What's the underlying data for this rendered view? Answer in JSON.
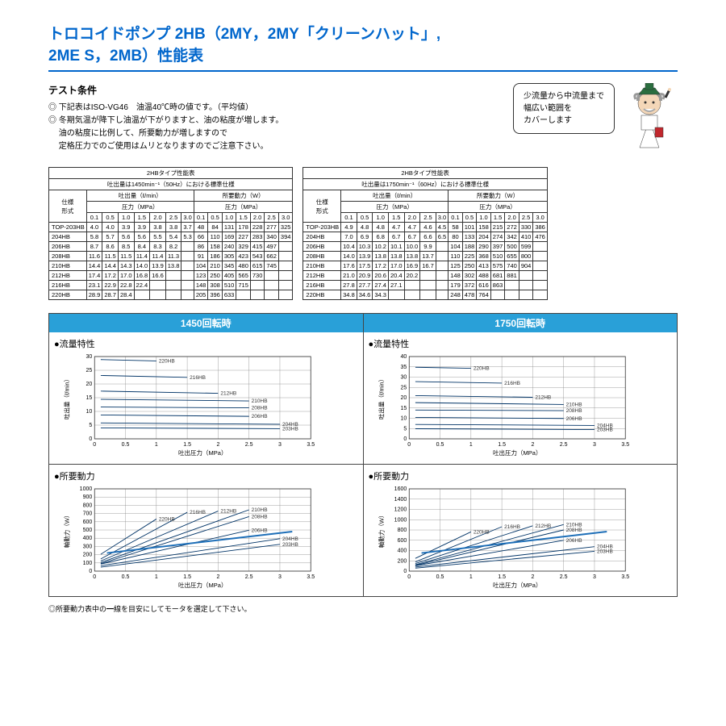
{
  "title_line1": "トロコイドポンプ 2HB（2MY，2MY「クリーンハット」,",
  "title_line2": "2ME S，2MB）性能表",
  "conditions_title": "テスト条件",
  "cond1": "◎ 下記表はISO-VG46　油温40℃時の値です。（平均値）",
  "cond2": "◎ 冬期気温が降下し油温が下がりますと、油の粘度が増します。",
  "cond3": "　 油の粘度に比例して、所要動力が増しますので",
  "cond4": "　 定格圧力でのご使用はムリとなりますのでご注意下さい。",
  "bubble1": "少流量から中流量まで",
  "bubble2": "幅広い範囲を",
  "bubble3": "カバーします",
  "tbl_title": "2HBタイプ性能表",
  "subtitle_1450": "吐出量は1450min⁻¹（50Hz）における標準仕様",
  "subtitle_1750": "吐出量は1750min⁻¹（60Hz）における標準仕様",
  "spec": "仕様",
  "model": "形式",
  "discharge": "吐出量（ℓ/min）",
  "power": "所要動力（W）",
  "pressure": "圧力（MPa）",
  "pressures_q": [
    "0.1",
    "0.5",
    "1.0",
    "1.5",
    "2.0",
    "2.5",
    "3.0"
  ],
  "pressures_w": [
    "0.1",
    "0.5",
    "1.0",
    "1.5",
    "2.0",
    "2.5",
    "3.0"
  ],
  "rows_1450": [
    {
      "m": "TOP-203HB",
      "q": [
        "4.0",
        "4.0",
        "3.9",
        "3.9",
        "3.8",
        "3.8",
        "3.7"
      ],
      "w": [
        "48",
        "84",
        "131",
        "178",
        "228",
        "277",
        "325"
      ]
    },
    {
      "m": "204HB",
      "q": [
        "5.8",
        "5.7",
        "5.6",
        "5.6",
        "5.5",
        "5.4",
        "5.3"
      ],
      "w": [
        "66",
        "110",
        "169",
        "227",
        "283",
        "340",
        "394"
      ]
    },
    {
      "m": "206HB",
      "q": [
        "8.7",
        "8.6",
        "8.5",
        "8.4",
        "8.3",
        "8.2",
        ""
      ],
      "w": [
        "86",
        "158",
        "240",
        "329",
        "415",
        "497",
        ""
      ]
    },
    {
      "m": "208HB",
      "q": [
        "11.6",
        "11.5",
        "11.5",
        "11.4",
        "11.4",
        "11.3",
        ""
      ],
      "w": [
        "91",
        "186",
        "305",
        "423",
        "543",
        "662",
        ""
      ]
    },
    {
      "m": "210HB",
      "q": [
        "14.4",
        "14.4",
        "14.3",
        "14.0",
        "13.9",
        "13.8",
        ""
      ],
      "w": [
        "104",
        "210",
        "345",
        "480",
        "615",
        "745",
        ""
      ]
    },
    {
      "m": "212HB",
      "q": [
        "17.4",
        "17.2",
        "17.0",
        "16.8",
        "16.6",
        "",
        ""
      ],
      "w": [
        "123",
        "250",
        "405",
        "565",
        "730",
        "",
        ""
      ]
    },
    {
      "m": "216HB",
      "q": [
        "23.1",
        "22.9",
        "22.8",
        "22.4",
        "",
        "",
        ""
      ],
      "w": [
        "148",
        "308",
        "510",
        "715",
        "",
        "",
        ""
      ]
    },
    {
      "m": "220HB",
      "q": [
        "28.9",
        "28.7",
        "28.4",
        "",
        "",
        "",
        ""
      ],
      "w": [
        "205",
        "396",
        "633",
        "",
        "",
        "",
        ""
      ]
    }
  ],
  "rows_1750": [
    {
      "m": "TOP-203HB",
      "q": [
        "4.9",
        "4.8",
        "4.8",
        "4.7",
        "4.7",
        "4.6",
        "4.5"
      ],
      "w": [
        "58",
        "101",
        "158",
        "215",
        "272",
        "330",
        "386"
      ]
    },
    {
      "m": "204HB",
      "q": [
        "7.0",
        "6.9",
        "6.8",
        "6.7",
        "6.7",
        "6.6",
        "6.5"
      ],
      "w": [
        "80",
        "133",
        "204",
        "274",
        "342",
        "410",
        "476"
      ]
    },
    {
      "m": "206HB",
      "q": [
        "10.4",
        "10.3",
        "10.2",
        "10.1",
        "10.0",
        "9.9",
        ""
      ],
      "w": [
        "104",
        "188",
        "290",
        "397",
        "500",
        "599",
        ""
      ]
    },
    {
      "m": "208HB",
      "q": [
        "14.0",
        "13.9",
        "13.8",
        "13.8",
        "13.8",
        "13.7",
        ""
      ],
      "w": [
        "110",
        "225",
        "368",
        "510",
        "655",
        "800",
        ""
      ]
    },
    {
      "m": "210HB",
      "q": [
        "17.6",
        "17.5",
        "17.2",
        "17.0",
        "16.9",
        "16.7",
        ""
      ],
      "w": [
        "125",
        "250",
        "413",
        "575",
        "740",
        "904",
        ""
      ]
    },
    {
      "m": "212HB",
      "q": [
        "21.0",
        "20.9",
        "20.6",
        "20.4",
        "20.2",
        "",
        ""
      ],
      "w": [
        "148",
        "302",
        "488",
        "681",
        "881",
        "",
        ""
      ]
    },
    {
      "m": "216HB",
      "q": [
        "27.8",
        "27.7",
        "27.4",
        "27.1",
        "",
        "",
        ""
      ],
      "w": [
        "179",
        "372",
        "616",
        "863",
        "",
        "",
        ""
      ]
    },
    {
      "m": "220HB",
      "q": [
        "34.8",
        "34.6",
        "34.3",
        "",
        "",
        "",
        ""
      ],
      "w": [
        "248",
        "478",
        "764",
        "",
        "",
        "",
        ""
      ]
    }
  ],
  "chart_header_1450": "1450回転時",
  "chart_header_1750": "1750回転時",
  "chart_flow": "●流量特性",
  "chart_power": "●所要動力",
  "xlabel": "吐出圧力（MPa）",
  "ylabel_flow": "吐出量（ℓ/min）",
  "ylabel_power": "軸動力（W）",
  "flow_1450": {
    "xlim": [
      0,
      3.5
    ],
    "ylim": [
      0,
      30
    ],
    "xtick": 0.5,
    "ytick": 5,
    "models": [
      "203HB",
      "204HB",
      "206HB",
      "208HB",
      "210HB",
      "212HB",
      "216HB",
      "220HB"
    ],
    "lines": [
      [
        [
          0.1,
          4.0
        ],
        [
          3.0,
          3.7
        ]
      ],
      [
        [
          0.1,
          5.8
        ],
        [
          3.0,
          5.3
        ]
      ],
      [
        [
          0.1,
          8.7
        ],
        [
          2.5,
          8.2
        ]
      ],
      [
        [
          0.1,
          11.6
        ],
        [
          2.5,
          11.3
        ]
      ],
      [
        [
          0.1,
          14.4
        ],
        [
          2.5,
          13.8
        ]
      ],
      [
        [
          0.1,
          17.4
        ],
        [
          2.0,
          16.6
        ]
      ],
      [
        [
          0.1,
          23.1
        ],
        [
          1.5,
          22.4
        ]
      ],
      [
        [
          0.1,
          28.9
        ],
        [
          1.0,
          28.4
        ]
      ]
    ]
  },
  "flow_1750": {
    "xlim": [
      0,
      3.5
    ],
    "ylim": [
      0,
      40
    ],
    "xtick": 0.5,
    "ytick": 5,
    "models": [
      "203HB",
      "204HB",
      "206HB",
      "208HB",
      "210HB",
      "212HB",
      "216HB",
      "220HB"
    ],
    "lines": [
      [
        [
          0.1,
          4.9
        ],
        [
          3.0,
          4.5
        ]
      ],
      [
        [
          0.1,
          7.0
        ],
        [
          3.0,
          6.5
        ]
      ],
      [
        [
          0.1,
          10.4
        ],
        [
          2.5,
          9.9
        ]
      ],
      [
        [
          0.1,
          14.0
        ],
        [
          2.5,
          13.7
        ]
      ],
      [
        [
          0.1,
          17.6
        ],
        [
          2.5,
          16.7
        ]
      ],
      [
        [
          0.1,
          21.0
        ],
        [
          2.0,
          20.2
        ]
      ],
      [
        [
          0.1,
          27.8
        ],
        [
          1.5,
          27.1
        ]
      ],
      [
        [
          0.1,
          34.8
        ],
        [
          1.0,
          34.3
        ]
      ]
    ]
  },
  "power_1450": {
    "xlim": [
      0,
      3.5
    ],
    "ylim": [
      0,
      1000
    ],
    "xtick": 0.5,
    "ytick": 100,
    "models": [
      "203HB",
      "204HB",
      "206HB",
      "208HB",
      "210HB",
      "212HB",
      "216HB",
      "220HB"
    ],
    "lines": [
      [
        [
          0.1,
          48
        ],
        [
          3.0,
          325
        ]
      ],
      [
        [
          0.1,
          66
        ],
        [
          3.0,
          394
        ]
      ],
      [
        [
          0.1,
          86
        ],
        [
          2.5,
          497
        ]
      ],
      [
        [
          0.1,
          91
        ],
        [
          2.5,
          662
        ]
      ],
      [
        [
          0.1,
          104
        ],
        [
          2.5,
          745
        ]
      ],
      [
        [
          0.1,
          123
        ],
        [
          2.0,
          730
        ]
      ],
      [
        [
          0.1,
          148
        ],
        [
          1.5,
          715
        ]
      ],
      [
        [
          0.1,
          205
        ],
        [
          1.0,
          633
        ]
      ]
    ]
  },
  "power_1750": {
    "xlim": [
      0,
      3.5
    ],
    "ylim": [
      0,
      1600
    ],
    "xtick": 0.5,
    "ytick": 200,
    "models": [
      "203HB",
      "204HB",
      "206HB",
      "208HB",
      "210HB",
      "212HB",
      "216HB",
      "220HB"
    ],
    "lines": [
      [
        [
          0.1,
          58
        ],
        [
          3.0,
          386
        ]
      ],
      [
        [
          0.1,
          80
        ],
        [
          3.0,
          476
        ]
      ],
      [
        [
          0.1,
          104
        ],
        [
          2.5,
          599
        ]
      ],
      [
        [
          0.1,
          110
        ],
        [
          2.5,
          800
        ]
      ],
      [
        [
          0.1,
          125
        ],
        [
          2.5,
          904
        ]
      ],
      [
        [
          0.1,
          148
        ],
        [
          2.0,
          881
        ]
      ],
      [
        [
          0.1,
          179
        ],
        [
          1.5,
          863
        ]
      ],
      [
        [
          0.1,
          248
        ],
        [
          1.0,
          764
        ]
      ]
    ]
  },
  "colors": {
    "line": "#003366",
    "grid": "#888",
    "header_bg": "#29a0d8",
    "accent": "#0066cc",
    "motor_line": "#1e6fb8"
  },
  "footnote": "◎所要動力表中の━線を目安にしてモータを選定して下さい。"
}
